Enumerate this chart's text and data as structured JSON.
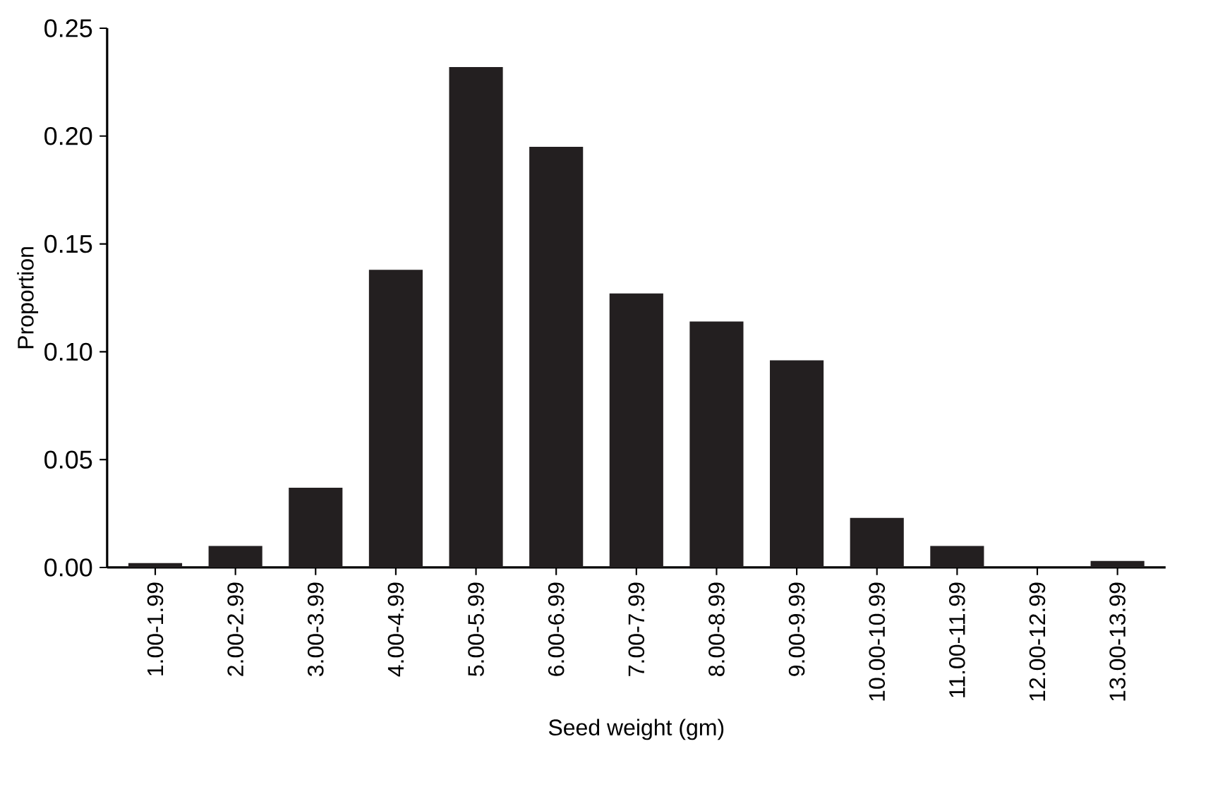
{
  "chart_data": {
    "type": "bar",
    "xlabel": "Seed weight (gm)",
    "ylabel": "Proportion",
    "categories": [
      "1.00-1.99",
      "2.00-2.99",
      "3.00-3.99",
      "4.00-4.99",
      "5.00-5.99",
      "6.00-6.99",
      "7.00-7.99",
      "8.00-8.99",
      "9.00-9.99",
      "10.00-10.99",
      "11.00-11.99",
      "12.00-12.99",
      "13.00-13.99"
    ],
    "values": [
      0.002,
      0.01,
      0.037,
      0.138,
      0.232,
      0.195,
      0.127,
      0.114,
      0.096,
      0.023,
      0.01,
      0,
      0.003
    ],
    "color": "#231f20",
    "ylim": [
      0,
      0.25
    ],
    "yticks": [
      {
        "value": 0,
        "label": "0.00"
      },
      {
        "value": 0.05,
        "label": "0.05"
      },
      {
        "value": 0.1,
        "label": "0.10"
      },
      {
        "value": 0.15,
        "label": "0.15"
      },
      {
        "value": 0.2,
        "label": "0.20"
      },
      {
        "value": 0.25,
        "label": "0.25"
      }
    ],
    "grid": false
  }
}
